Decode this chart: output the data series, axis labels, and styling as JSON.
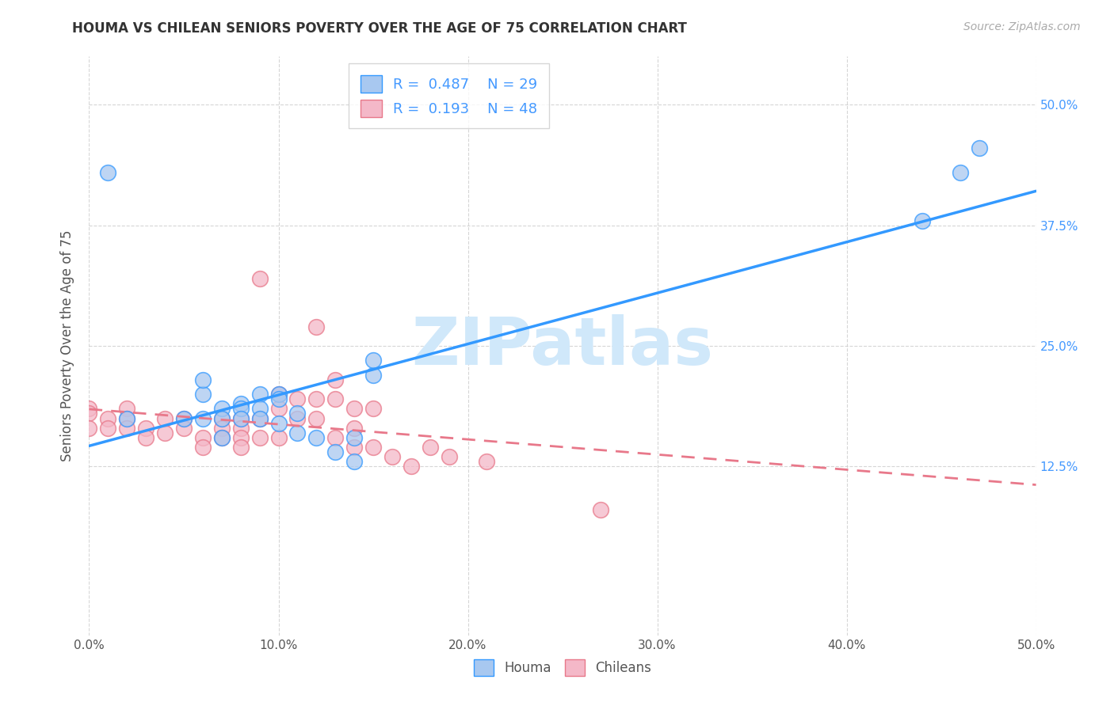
{
  "title": "HOUMA VS CHILEAN SENIORS POVERTY OVER THE AGE OF 75 CORRELATION CHART",
  "source": "Source: ZipAtlas.com",
  "ylabel": "Seniors Poverty Over the Age of 75",
  "xlim": [
    0,
    0.5
  ],
  "ylim": [
    -0.05,
    0.55
  ],
  "xticks": [
    0.0,
    0.1,
    0.2,
    0.3,
    0.4,
    0.5
  ],
  "yticks": [
    0.125,
    0.25,
    0.375,
    0.5
  ],
  "xticklabels": [
    "0.0%",
    "10.0%",
    "20.0%",
    "30.0%",
    "40.0%",
    "50.0%"
  ],
  "yticklabels": [
    "12.5%",
    "25.0%",
    "37.5%",
    "50.0%"
  ],
  "houma_R": 0.487,
  "houma_N": 29,
  "chilean_R": 0.193,
  "chilean_N": 48,
  "houma_color": "#a8c8f0",
  "chilean_color": "#f4b8c8",
  "houma_line_color": "#3399ff",
  "chilean_line_color": "#e8788a",
  "tick_color": "#4499ff",
  "watermark_color": "#d0e8fa",
  "houma_x": [
    0.01,
    0.02,
    0.05,
    0.06,
    0.06,
    0.06,
    0.07,
    0.07,
    0.07,
    0.08,
    0.08,
    0.08,
    0.09,
    0.09,
    0.09,
    0.1,
    0.1,
    0.1,
    0.11,
    0.11,
    0.12,
    0.13,
    0.14,
    0.14,
    0.15,
    0.15,
    0.44,
    0.46,
    0.47
  ],
  "houma_y": [
    0.43,
    0.175,
    0.175,
    0.2,
    0.215,
    0.175,
    0.185,
    0.175,
    0.155,
    0.19,
    0.185,
    0.175,
    0.2,
    0.185,
    0.175,
    0.2,
    0.195,
    0.17,
    0.18,
    0.16,
    0.155,
    0.14,
    0.155,
    0.13,
    0.22,
    0.235,
    0.38,
    0.43,
    0.455
  ],
  "chilean_x": [
    0.0,
    0.0,
    0.0,
    0.01,
    0.01,
    0.02,
    0.02,
    0.02,
    0.03,
    0.03,
    0.04,
    0.04,
    0.05,
    0.05,
    0.06,
    0.06,
    0.07,
    0.07,
    0.07,
    0.08,
    0.08,
    0.08,
    0.08,
    0.09,
    0.09,
    0.09,
    0.1,
    0.1,
    0.1,
    0.11,
    0.11,
    0.12,
    0.12,
    0.12,
    0.13,
    0.13,
    0.13,
    0.14,
    0.14,
    0.14,
    0.15,
    0.15,
    0.16,
    0.17,
    0.18,
    0.19,
    0.21,
    0.27
  ],
  "chilean_y": [
    0.185,
    0.18,
    0.165,
    0.175,
    0.165,
    0.185,
    0.175,
    0.165,
    0.165,
    0.155,
    0.175,
    0.16,
    0.175,
    0.165,
    0.155,
    0.145,
    0.175,
    0.165,
    0.155,
    0.175,
    0.165,
    0.155,
    0.145,
    0.175,
    0.32,
    0.155,
    0.2,
    0.185,
    0.155,
    0.195,
    0.175,
    0.27,
    0.195,
    0.175,
    0.215,
    0.195,
    0.155,
    0.185,
    0.165,
    0.145,
    0.185,
    0.145,
    0.135,
    0.125,
    0.145,
    0.135,
    0.13,
    0.08
  ]
}
